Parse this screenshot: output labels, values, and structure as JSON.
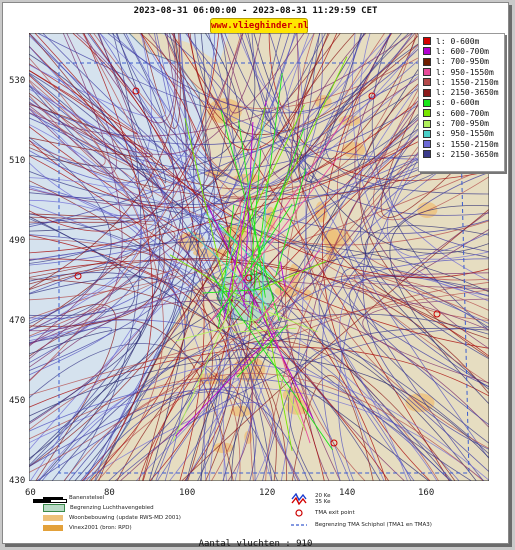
{
  "header": {
    "time_range": "2023-08-31 06:00:00 - 2023-08-31 11:29:59 CET",
    "badge": "www.vlieghinder.nl"
  },
  "map": {
    "y_ticks": [
      "530",
      "510",
      "490",
      "470",
      "450",
      "430"
    ],
    "x_ticks": [
      "60",
      "80",
      "100",
      "120",
      "140",
      "160"
    ],
    "colors": {
      "land": "#e6ddc1",
      "sea": "#d5e2ee",
      "airport": "#b9dbc6",
      "residential": "#eec17a",
      "track_low": "#a60000",
      "track_high": "#3c3aa0"
    }
  },
  "legend": {
    "entries": [
      {
        "label": "l: 0-600m",
        "color": "#d40000"
      },
      {
        "label": "l: 600-700m",
        "color": "#b100cf"
      },
      {
        "label": "l: 700-950m",
        "color": "#6f1e00"
      },
      {
        "label": "l: 950-1550m",
        "color": "#e84c9a"
      },
      {
        "label": "l: 1550-2150m",
        "color": "#b34a4a"
      },
      {
        "label": "l: 2150-3650m",
        "color": "#8b1a1a"
      },
      {
        "label": "s: 0-600m",
        "color": "#19e619"
      },
      {
        "label": "s: 600-700m",
        "color": "#79e600"
      },
      {
        "label": "s: 700-950m",
        "color": "#b0f05a"
      },
      {
        "label": "s: 950-1550m",
        "color": "#4ad0c8"
      },
      {
        "label": "s: 1550-2150m",
        "color": "#6d6ad6"
      },
      {
        "label": "s: 2150-3650m",
        "color": "#3a3a8a"
      }
    ]
  },
  "key": {
    "runway": "Banenstelsel",
    "airport_boundary": "Begrenzing Luchthavengebied",
    "housing": "Woonbebouwing (update RWS-MD 2001)",
    "vinex": "Vinex2001 (bron: RPD)",
    "ke20": "20 Ke",
    "ke35": "35 Ke",
    "tma_exit": "TMA exit point",
    "tma_boundary": "Begrenzing TMA Schiphol  (TMA1 en TMA3)"
  },
  "footer": {
    "count": "Aantal vluchten : 910"
  }
}
